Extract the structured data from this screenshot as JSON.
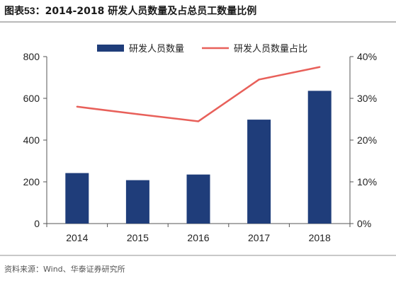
{
  "figure": {
    "number": "图表53：",
    "title": "2014-2018 研发人员数量及占总员工数量比例",
    "source": "资料来源：Wind、华泰证券研究所"
  },
  "colors": {
    "bar": "#1f3d7a",
    "line": "#e8605a",
    "axis": "#555555",
    "text": "#222222"
  },
  "chart_data": {
    "type": "bar",
    "categories": [
      "2014",
      "2015",
      "2016",
      "2017",
      "2018"
    ],
    "series": [
      {
        "name": "研发人员数量",
        "kind": "bar",
        "axis": "left",
        "values": [
          242,
          208,
          235,
          498,
          636
        ]
      },
      {
        "name": "研发人员数量占比",
        "kind": "line",
        "axis": "right",
        "values": [
          28.0,
          26.2,
          24.5,
          34.5,
          37.5
        ]
      }
    ],
    "y_left": {
      "ylim": [
        0,
        800
      ],
      "ticks": [
        0,
        200,
        400,
        600,
        800
      ],
      "tick_labels": [
        "0",
        "200",
        "400",
        "600",
        "800"
      ]
    },
    "y_right": {
      "ylim": [
        0,
        40
      ],
      "ticks": [
        0,
        10,
        20,
        30,
        40
      ],
      "tick_labels": [
        "0%",
        "10%",
        "20%",
        "30%",
        "40%"
      ]
    },
    "legend_placement": "top",
    "grid": false
  }
}
